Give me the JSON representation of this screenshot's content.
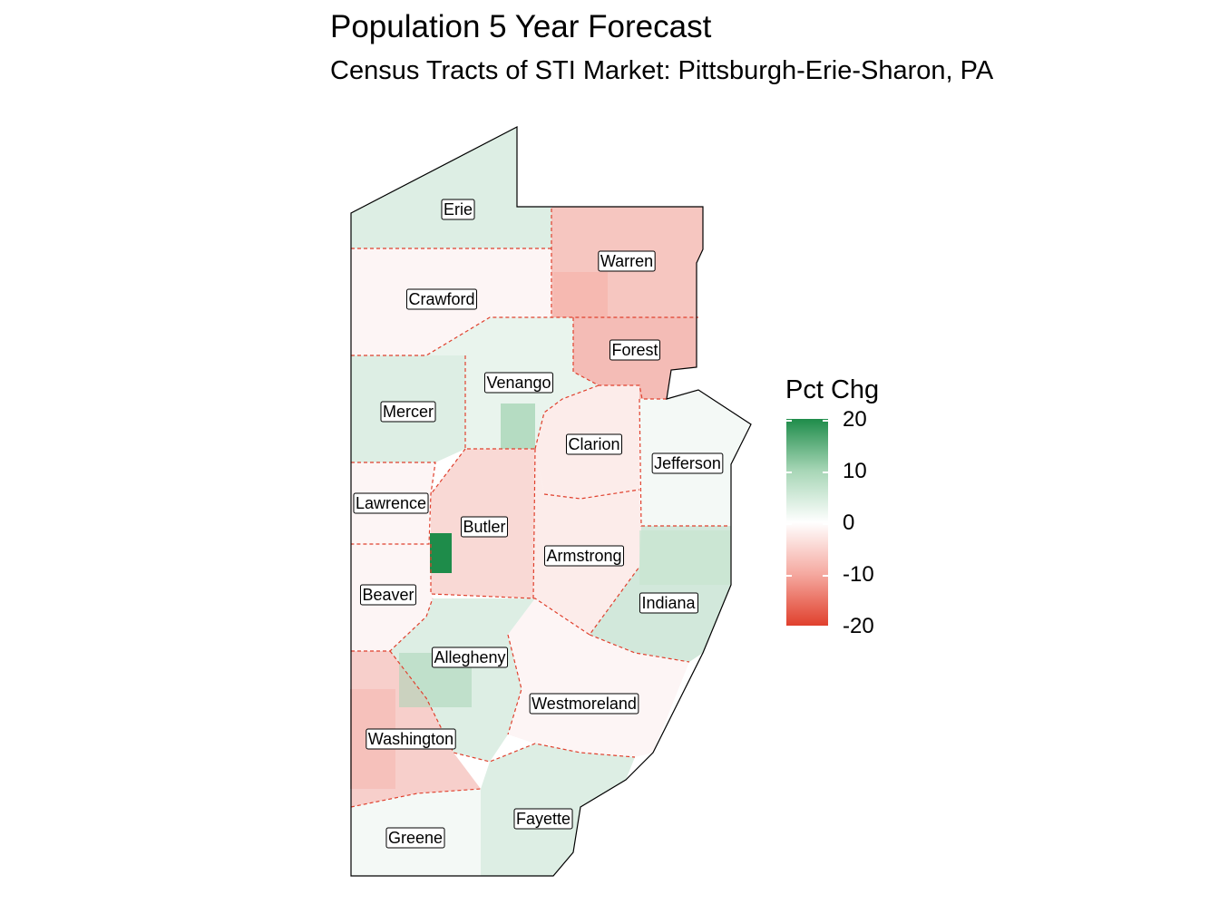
{
  "title": "Population 5 Year Forecast",
  "subtitle": "Census Tracts of STI Market: Pittsburgh-Erie-Sharon, PA",
  "legend": {
    "title": "Pct Chg",
    "ticks": [
      "20",
      "10",
      "0",
      "-10",
      "-20"
    ],
    "colors": {
      "high": "#1e8c4a",
      "mid": "#ffffff",
      "low": "#e0402d"
    }
  },
  "counties": [
    {
      "name": "Erie",
      "pct_chg": 3
    },
    {
      "name": "Warren",
      "pct_chg": -6
    },
    {
      "name": "Crawford",
      "pct_chg": -1
    },
    {
      "name": "Forest",
      "pct_chg": -7
    },
    {
      "name": "Venango",
      "pct_chg": 2
    },
    {
      "name": "Mercer",
      "pct_chg": 3
    },
    {
      "name": "Clarion",
      "pct_chg": -2
    },
    {
      "name": "Jefferson",
      "pct_chg": 1
    },
    {
      "name": "Lawrence",
      "pct_chg": -1
    },
    {
      "name": "Butler",
      "pct_chg": -4
    },
    {
      "name": "Armstrong",
      "pct_chg": -2
    },
    {
      "name": "Beaver",
      "pct_chg": -1
    },
    {
      "name": "Indiana",
      "pct_chg": 4
    },
    {
      "name": "Allegheny",
      "pct_chg": 3
    },
    {
      "name": "Westmoreland",
      "pct_chg": -1
    },
    {
      "name": "Washington",
      "pct_chg": -5
    },
    {
      "name": "Fayette",
      "pct_chg": 3
    },
    {
      "name": "Greene",
      "pct_chg": 1
    }
  ]
}
